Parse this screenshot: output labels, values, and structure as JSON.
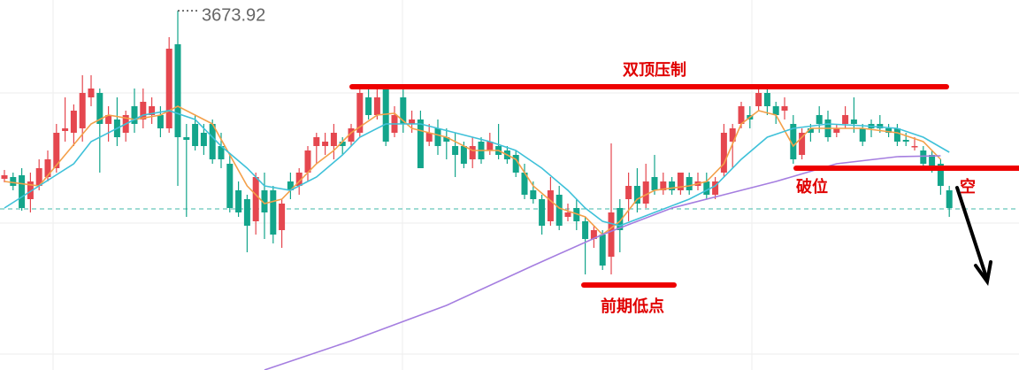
{
  "chart_data": {
    "type": "candlestick",
    "ylim": [
      3471,
      3680
    ],
    "up_color": "#e5474f",
    "down_color": "#13a58b",
    "open": [
      3579,
      3580,
      3581,
      3567.5,
      3575,
      3580,
      3585,
      3606,
      3605,
      3607.5,
      3625,
      3627.5,
      3610,
      3612.5,
      3605,
      3620,
      3612.5,
      3615,
      3615,
      3607.5,
      3655,
      3602.5,
      3610,
      3605,
      3610,
      3597.5,
      3587.5,
      3572.5,
      3567.5,
      3555,
      3572.5,
      3572.5,
      3550,
      3577.5,
      3575,
      3582.5,
      3597.5,
      3597.5,
      3597.5,
      3600,
      3600,
      3605,
      3625,
      3615,
      3630,
      3605,
      3625,
      3610,
      3612.5,
      3600,
      3607.5,
      3602.5,
      3597.5,
      3597.5,
      3590,
      3600,
      3595,
      3597.5,
      3595,
      3592.5,
      3582.5,
      3572.5,
      3567.5,
      3555,
      3570,
      3557.5,
      3562.5,
      3555,
      3545,
      3547.5,
      3535,
      3562.5,
      3567.5,
      3575,
      3565,
      3580,
      3572.5,
      3577.5,
      3572.5,
      3580,
      3575,
      3577.5,
      3570,
      3582.5,
      3600,
      3610,
      3615,
      3620,
      3627.5,
      3620,
      3617.5,
      3610,
      3592.5,
      3607.5,
      3615,
      3612.5,
      3605,
      3610,
      3612.5,
      3607.5,
      3610,
      3610,
      3607.5,
      3607.5,
      3601,
      3597.5,
      3595,
      3592.5,
      3587.5,
      3572.5
    ],
    "high": [
      3584,
      3582.5,
      3585,
      3582.5,
      3590,
      3595,
      3610,
      3625,
      3621,
      3637.5,
      3637.5,
      3630,
      3620,
      3625,
      3617.5,
      3630,
      3630,
      3625,
      3620,
      3659,
      3673.92,
      3610,
      3615,
      3610,
      3612.5,
      3605,
      3592.5,
      3577.5,
      3570,
      3582.5,
      3582.5,
      3575,
      3567.5,
      3582.5,
      3585,
      3597.5,
      3605,
      3605,
      3610,
      3602.5,
      3610,
      3632.5,
      3630,
      3630,
      3632.5,
      3620,
      3630,
      3617.5,
      3617.5,
      3610,
      3612.5,
      3607.5,
      3605,
      3600,
      3602.5,
      3602.5,
      3605,
      3610,
      3597.5,
      3595,
      3587.5,
      3577.5,
      3570,
      3580,
      3575,
      3565,
      3567.5,
      3557.5,
      3552.5,
      3550,
      3599,
      3567.5,
      3582.5,
      3585,
      3587.5,
      3592.5,
      3582.5,
      3580,
      3582.5,
      3582.5,
      3582.5,
      3582.5,
      3580,
      3610,
      3610,
      3622.5,
      3620,
      3630,
      3631,
      3622.5,
      3625,
      3615,
      3607.5,
      3610,
      3620,
      3617.5,
      3610,
      3620,
      3625,
      3610,
      3612.5,
      3615,
      3610,
      3610,
      3605,
      3602.5,
      3597.5,
      3595,
      3590,
      3575
    ],
    "low": [
      3577,
      3572.5,
      3561,
      3560,
      3572.5,
      3577.5,
      3582.5,
      3600,
      3597.5,
      3600,
      3620,
      3582.5,
      3600,
      3597.5,
      3600,
      3605,
      3607.5,
      3610,
      3602.5,
      3605,
      3575,
      3557.5,
      3595,
      3592.5,
      3587.5,
      3585,
      3560,
      3557.5,
      3537.5,
      3547.5,
      3545,
      3542.5,
      3540,
      3567.5,
      3570,
      3577.5,
      3587.5,
      3592.5,
      3590,
      3592.5,
      3597.5,
      3602.5,
      3612.5,
      3612.5,
      3597.5,
      3602.5,
      3605,
      3605,
      3585,
      3597.5,
      3592.5,
      3590,
      3580,
      3585,
      3585,
      3587.5,
      3592.5,
      3590,
      3587.5,
      3580,
      3567.5,
      3565,
      3547.5,
      3552.5,
      3550,
      3555,
      3550,
      3525,
      3540,
      3527.5,
      3525,
      3537.5,
      3555,
      3560,
      3562.5,
      3570,
      3570,
      3570,
      3570,
      3570,
      3572.5,
      3567.5,
      3567.5,
      3580,
      3585,
      3607.5,
      3607.5,
      3617.5,
      3615,
      3610,
      3612.5,
      3587.5,
      3590,
      3600,
      3605,
      3600,
      3602.5,
      3607.5,
      3605,
      3597.5,
      3602.5,
      3605,
      3602.5,
      3597.5,
      3597.5,
      3595,
      3585,
      3582.5,
      3570,
      3557.5
    ],
    "close": [
      3581,
      3575,
      3562.5,
      3577.5,
      3585,
      3590,
      3605,
      3607.5,
      3617.5,
      3627.5,
      3630,
      3610,
      3615,
      3602.5,
      3615,
      3610,
      3622.5,
      3620,
      3607.5,
      3652.5,
      3602.5,
      3601,
      3597.5,
      3597.5,
      3590,
      3590,
      3562.5,
      3560,
      3552.5,
      3580,
      3560,
      3547.5,
      3565,
      3572.5,
      3582.5,
      3595,
      3602.5,
      3600,
      3605,
      3597.5,
      3607.5,
      3627.5,
      3615,
      3625,
      3600,
      3615,
      3610,
      3612.5,
      3585,
      3605,
      3597.5,
      3600,
      3592.5,
      3587.5,
      3597.5,
      3590,
      3600,
      3592.5,
      3590,
      3582.5,
      3570,
      3567.5,
      3552.5,
      3572.5,
      3552.5,
      3560,
      3555,
      3545,
      3550,
      3530,
      3560,
      3550,
      3575,
      3565,
      3577.5,
      3572.5,
      3577.5,
      3572.5,
      3582.5,
      3572.5,
      3577.5,
      3570,
      3577.5,
      3605,
      3607.5,
      3620,
      3612.5,
      3627.5,
      3620,
      3615,
      3620,
      3590,
      3605,
      3605,
      3610,
      3602.5,
      3607.5,
      3615,
      3610,
      3600,
      3607.5,
      3607.5,
      3605,
      3600,
      3600,
      3597.5,
      3587.5,
      3585,
      3575,
      3562.5
    ],
    "series": [
      {
        "color": "#f4a04a",
        "x": [
          0,
          4,
          7,
          10,
          12,
          15,
          18,
          20,
          22,
          24,
          26,
          28,
          30,
          32,
          34,
          36,
          38,
          40,
          43,
          45,
          47,
          51,
          54,
          57,
          59,
          61,
          64,
          67,
          69,
          71,
          73,
          75,
          79,
          81,
          83,
          85,
          87,
          89,
          91,
          93,
          96,
          99,
          103,
          106,
          108
        ],
        "values": [
          3577.5,
          3575,
          3592.5,
          3610,
          3615,
          3612.5,
          3615,
          3620,
          3615,
          3610,
          3592.5,
          3575,
          3565,
          3567.5,
          3577.5,
          3587.5,
          3595,
          3605,
          3615,
          3616,
          3607.5,
          3602.5,
          3595,
          3595,
          3590,
          3575,
          3562.5,
          3557.5,
          3547.5,
          3555,
          3567.5,
          3572.5,
          3575,
          3577.5,
          3587.5,
          3610,
          3617.5,
          3615,
          3597.5,
          3607.5,
          3607.5,
          3607.5,
          3605,
          3600,
          3590
        ]
      },
      {
        "color": "#3fc1d9",
        "x": [
          0,
          4,
          8,
          10,
          13,
          16,
          19,
          22,
          25,
          28,
          30,
          33,
          36,
          39,
          41,
          44,
          48,
          52,
          56,
          59,
          62,
          65,
          67,
          69,
          71,
          75,
          79,
          82,
          85,
          88,
          91,
          95,
          99,
          103,
          106,
          109
        ],
        "values": [
          3562.5,
          3575,
          3587.5,
          3600,
          3607.5,
          3615,
          3617.5,
          3612.5,
          3597.5,
          3585,
          3575,
          3572.5,
          3580,
          3592.5,
          3602.5,
          3610,
          3610,
          3605,
          3600,
          3595,
          3585,
          3572.5,
          3562.5,
          3555,
          3552.5,
          3560,
          3567.5,
          3575,
          3590,
          3602.5,
          3607.5,
          3610,
          3609,
          3607.5,
          3602.5,
          3594
        ]
      },
      {
        "color": "#a57ee0",
        "x": [
          30,
          40,
          51,
          61,
          69,
          77,
          83,
          89,
          96,
          103,
          108
        ],
        "values": [
          3471,
          3487.5,
          3507.5,
          3530,
          3547.5,
          3562.5,
          3570,
          3577.5,
          3587.5,
          3591.5,
          3592
        ]
      }
    ],
    "reference_line": 3562,
    "annotations": [
      {
        "text": "双顶压制",
        "level": 3631
      },
      {
        "text": "破位",
        "level": 3585
      },
      {
        "text": "前期低点",
        "level": 3519
      },
      {
        "text": "空"
      }
    ]
  }
}
